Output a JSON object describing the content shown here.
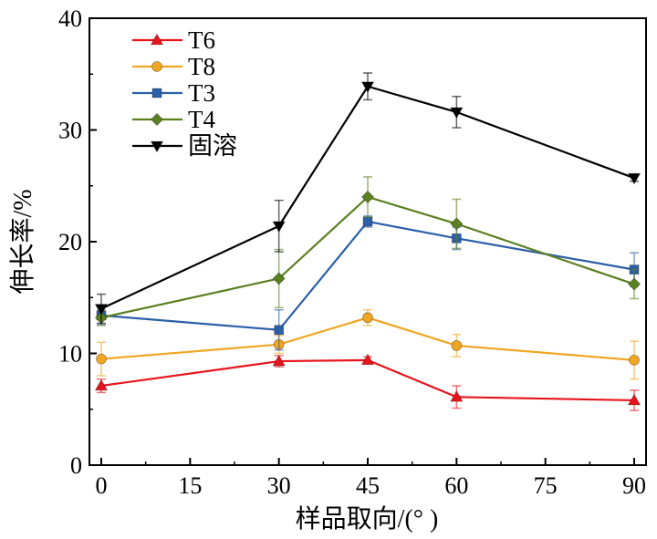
{
  "chart_data": {
    "type": "line",
    "title": "",
    "xlabel": "样品取向/(°  )",
    "ylabel": "伸长率/%",
    "x": [
      0,
      30,
      45,
      60,
      90
    ],
    "xticks": [
      0,
      15,
      30,
      45,
      60,
      75,
      90
    ],
    "xtick_labels": [
      "0",
      "15",
      "30",
      "45",
      "60",
      "75",
      "90"
    ],
    "xlim": [
      -2,
      92
    ],
    "yticks": [
      0,
      10,
      20,
      30,
      40
    ],
    "ytick_labels": [
      "0",
      "10",
      "20",
      "30",
      "40"
    ],
    "ylim": [
      0,
      40
    ],
    "grid": false,
    "legend_position": "top-left",
    "series": [
      {
        "name": "T6",
        "color": "#e8141c",
        "marker": "triangle-up",
        "values": [
          7.1,
          9.3,
          9.4,
          6.1,
          5.8
        ],
        "errors": [
          0.6,
          0.5,
          0.3,
          1.0,
          0.9
        ]
      },
      {
        "name": "T8",
        "color": "#f0a623",
        "marker": "circle",
        "values": [
          9.5,
          10.8,
          13.2,
          10.7,
          9.4
        ],
        "errors": [
          1.5,
          0.8,
          0.7,
          1.0,
          1.7
        ]
      },
      {
        "name": "T3",
        "color": "#2b5fa8",
        "marker": "square",
        "values": [
          13.4,
          12.1,
          21.8,
          20.3,
          17.5
        ],
        "errors": [
          0.8,
          1.8,
          0.5,
          1.0,
          1.5
        ]
      },
      {
        "name": "T4",
        "color": "#5a8020",
        "marker": "diamond",
        "values": [
          13.2,
          16.7,
          24.0,
          21.6,
          16.2
        ],
        "errors": [
          0.7,
          2.6,
          1.8,
          2.2,
          1.3
        ]
      },
      {
        "name": "固溶",
        "color": "#000000",
        "marker": "triangle-down",
        "values": [
          14.0,
          21.4,
          33.9,
          31.6,
          25.7
        ],
        "errors": [
          1.3,
          2.3,
          1.2,
          1.4,
          0.3
        ]
      }
    ]
  }
}
